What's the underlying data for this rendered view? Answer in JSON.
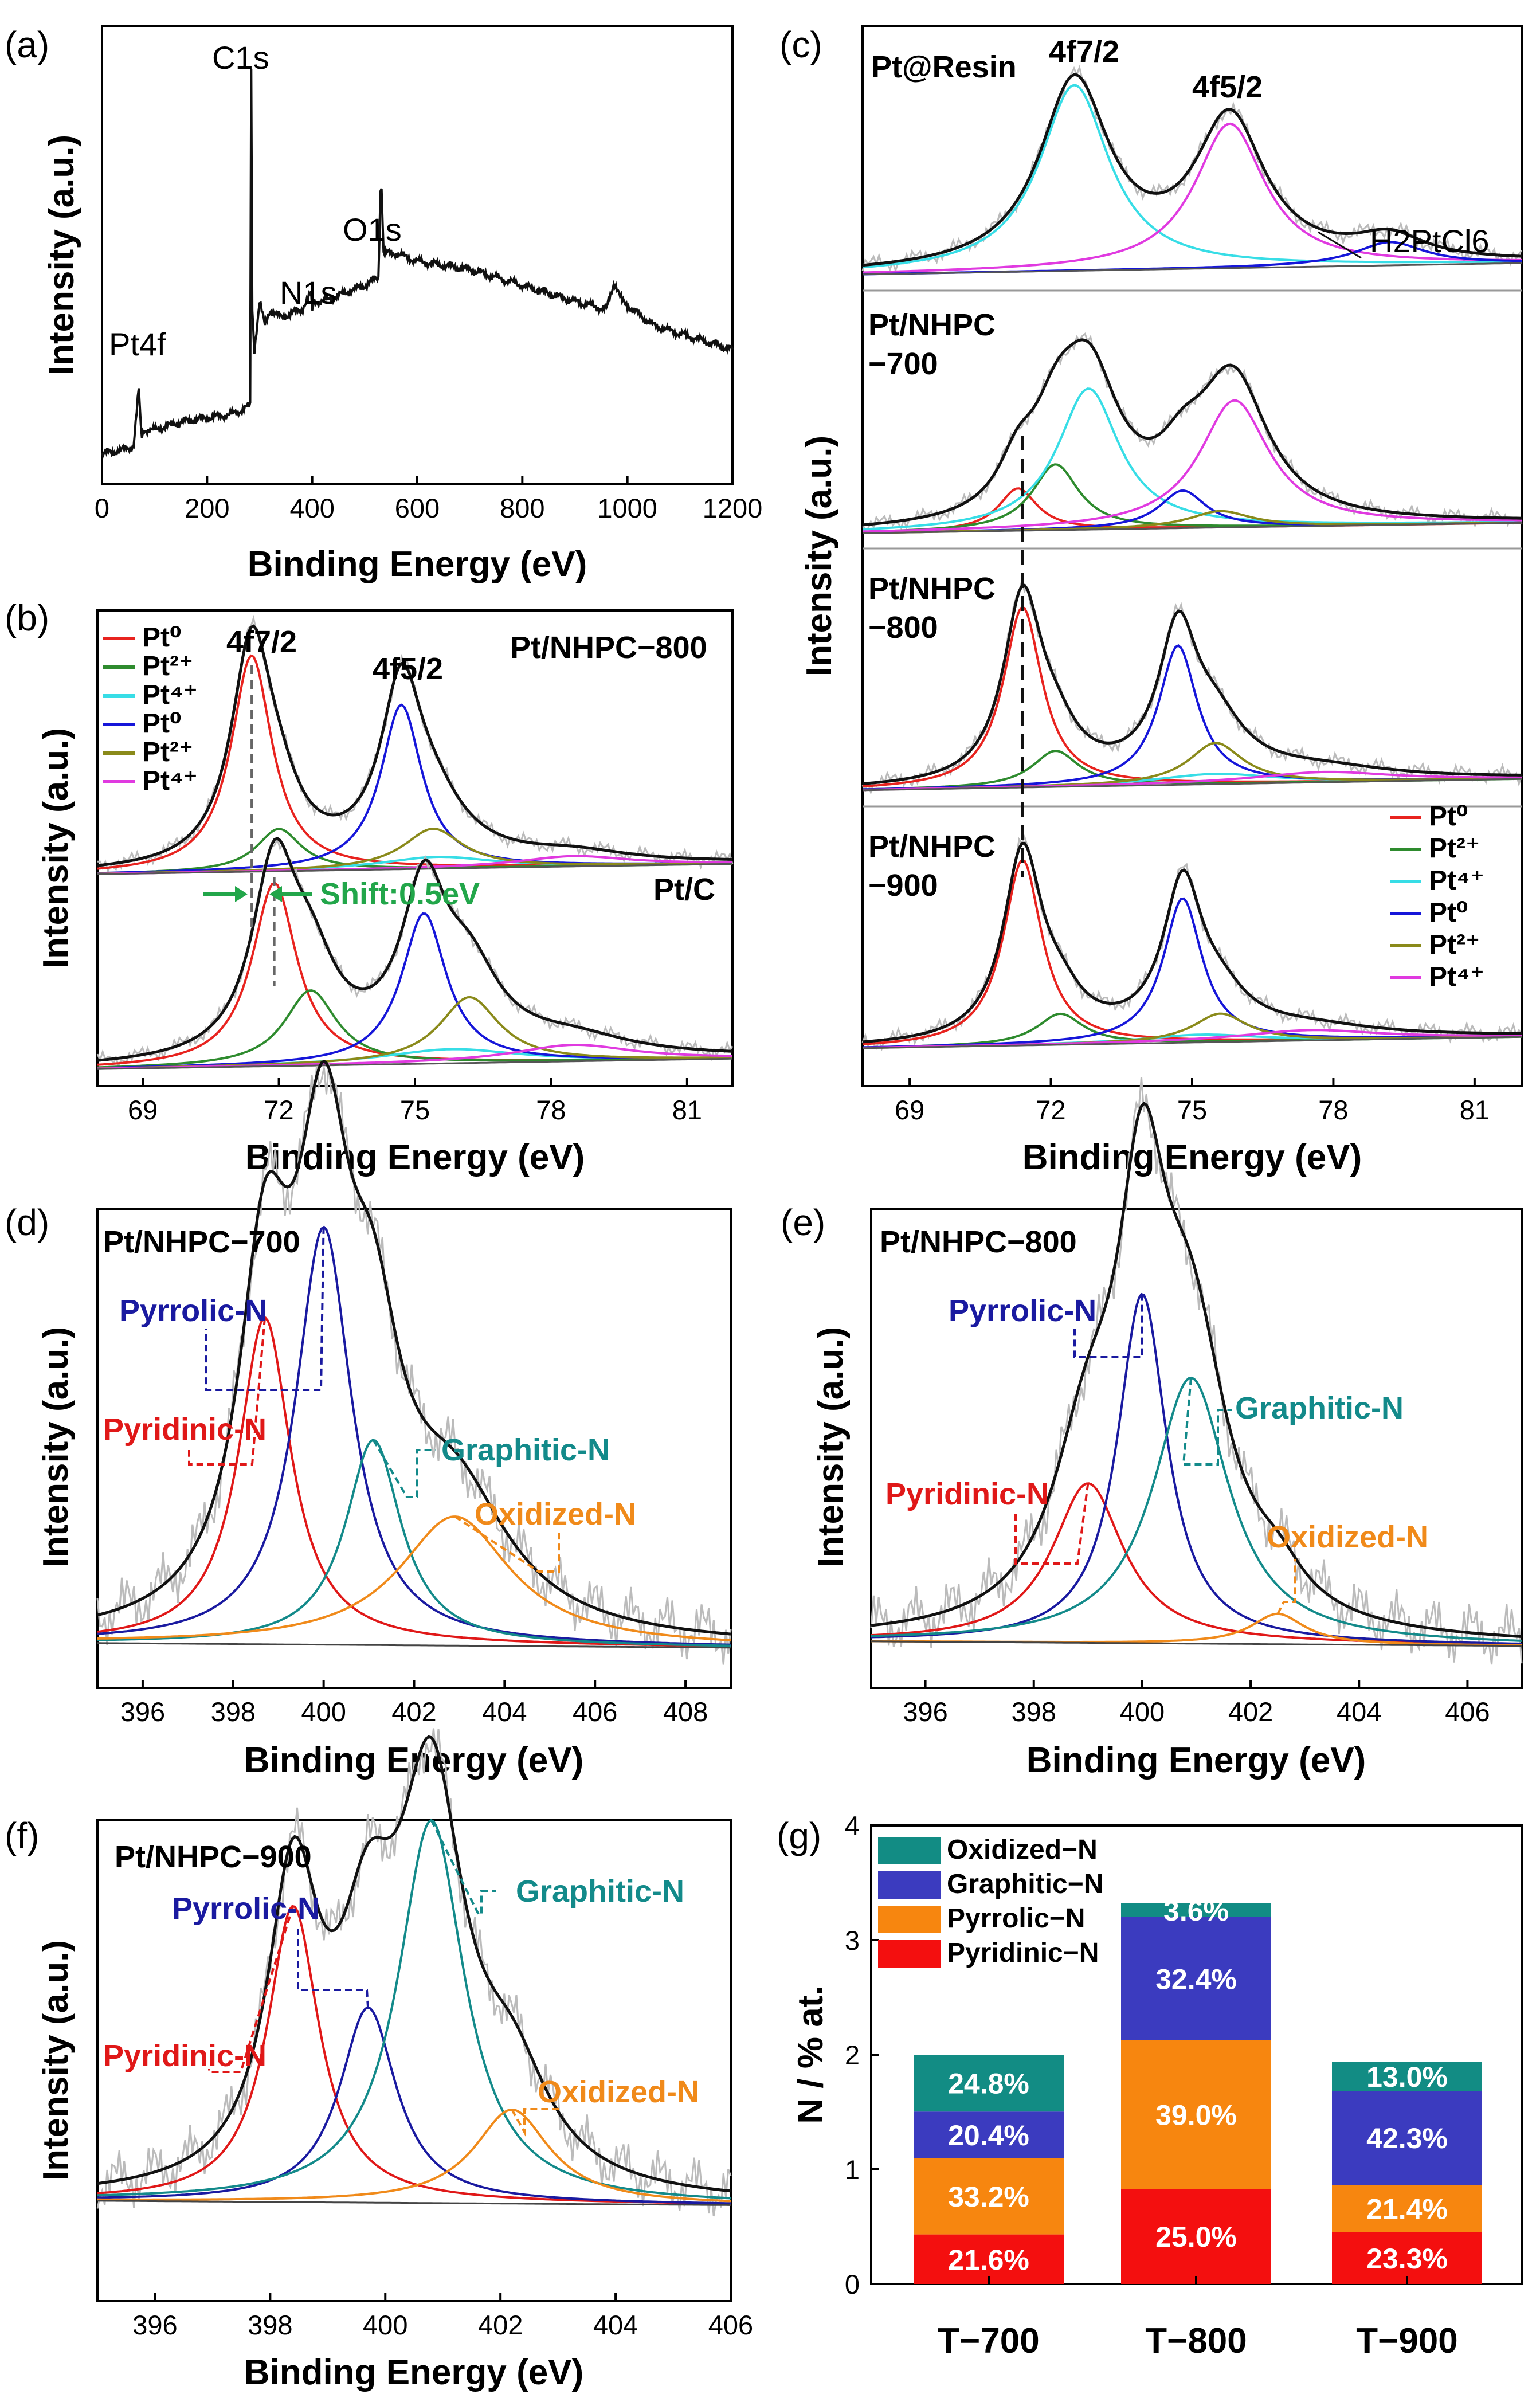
{
  "colors": {
    "pt0": "#e8231f",
    "pt2": "#2e8b2e",
    "pt4": "#37dde6",
    "pt0b": "#1616d9",
    "pt2b": "#8a8a1a",
    "pt4b": "#e03ae0",
    "envelope": "#111111",
    "raw": "#bbbbbb",
    "pyridinic": "#e01818",
    "pyrrolic": "#1a1aa0",
    "graphitic": "#138a8a",
    "oxidized": "#f08a1a",
    "bar_pyridinic": "#f40f0f",
    "bar_pyrrolic": "#f7860f",
    "bar_graphitic": "#3b3bbf",
    "bar_oxidized": "#128c84",
    "shift": "#22a64a"
  },
  "chart_data": [
    {
      "panel": "(a)",
      "type": "line",
      "xlabel": "Binding Energy (eV)",
      "ylabel": "Intensity (a.u.)",
      "xlim": [
        0,
        1200
      ],
      "xticks": [
        0,
        200,
        400,
        600,
        800,
        1000,
        1200
      ],
      "annotations": [
        "C1s",
        "O1s",
        "N1s",
        "Pt4f"
      ],
      "series": [
        {
          "name": "survey",
          "x": [
            0,
            40,
            60,
            70,
            75,
            80,
            100,
            150,
            200,
            250,
            282,
            284,
            286,
            290,
            300,
            310,
            320,
            340,
            380,
            398,
            400,
            402,
            420,
            460,
            500,
            526,
            531,
            536,
            560,
            600,
            700,
            800,
            900,
            960,
            975,
            990,
            1000,
            1050,
            1100,
            1150,
            1200
          ],
          "y": [
            4,
            5,
            6,
            20,
            8,
            10,
            10,
            12,
            13,
            14,
            16,
            100,
            40,
            30,
            42,
            36,
            40,
            38,
            40,
            44,
            39,
            42,
            42,
            44,
            46,
            48,
            75,
            54,
            54,
            52,
            50,
            46,
            42,
            40,
            47,
            42,
            41,
            36,
            34,
            32,
            30
          ]
        }
      ]
    },
    {
      "panel": "(b)",
      "type": "line",
      "xlabel": "Binding Energy (eV)",
      "ylabel": "Intensity (a.u.)",
      "xlim": [
        68,
        82
      ],
      "xticks": [
        69,
        72,
        75,
        78,
        81
      ],
      "legend": [
        "Pt⁰",
        "Pt²⁺",
        "Pt⁴⁺",
        "Pt⁰",
        "Pt²⁺",
        "Pt⁴⁺"
      ],
      "sample_labels": [
        "Pt/NHPC−800",
        "Pt/C"
      ],
      "peak_labels": [
        "4f7/2",
        "4f5/2"
      ],
      "shift_label": "Shift:0.5eV",
      "dashed_lines_x": [
        71.4,
        71.9
      ],
      "spectra": [
        {
          "name": "Pt/NHPC−800",
          "peaks": [
            {
              "state": "pt0",
              "center": 71.4,
              "height": 4.6,
              "width": 0.55
            },
            {
              "state": "pt2",
              "center": 72.0,
              "height": 0.9,
              "width": 0.6
            },
            {
              "state": "pt4",
              "center": 75.5,
              "height": 0.25,
              "width": 1.5
            },
            {
              "state": "pt0b",
              "center": 74.7,
              "height": 3.5,
              "width": 0.55
            },
            {
              "state": "pt2b",
              "center": 75.4,
              "height": 0.85,
              "width": 0.8
            },
            {
              "state": "pt4b",
              "center": 78.5,
              "height": 0.22,
              "width": 1.5
            }
          ]
        },
        {
          "name": "Pt/C",
          "peaks": [
            {
              "state": "pt0",
              "center": 71.9,
              "height": 3.9,
              "width": 0.6
            },
            {
              "state": "pt2",
              "center": 72.7,
              "height": 1.6,
              "width": 0.7
            },
            {
              "state": "pt4",
              "center": 75.8,
              "height": 0.3,
              "width": 1.8
            },
            {
              "state": "pt0b",
              "center": 75.2,
              "height": 3.2,
              "width": 0.6
            },
            {
              "state": "pt2b",
              "center": 76.2,
              "height": 1.4,
              "width": 0.8
            },
            {
              "state": "pt4b",
              "center": 78.5,
              "height": 0.35,
              "width": 1.6
            }
          ]
        }
      ]
    },
    {
      "panel": "(c)",
      "type": "line",
      "xlabel": "Binding Energy (eV)",
      "ylabel": "Intensity (a.u.)",
      "xlim": [
        68,
        82
      ],
      "xticks": [
        69,
        72,
        75,
        78,
        81
      ],
      "legend": [
        "Pt⁰",
        "Pt²⁺",
        "Pt⁴⁺",
        "Pt⁰",
        "Pt²⁺",
        "Pt⁴⁺"
      ],
      "sample_labels": [
        "Pt@Resin",
        "Pt/NHPC\n−700",
        "Pt/NHPC\n−800",
        "Pt/NHPC\n−900"
      ],
      "peak_labels": [
        "4f7/2",
        "4f5/2",
        "H2PtCl6"
      ],
      "dashed_line_x": 71.4,
      "spectra": [
        {
          "name": "Pt@Resin",
          "peaks": [
            {
              "state": "pt4",
              "center": 72.5,
              "height": 3.6,
              "width": 0.9
            },
            {
              "state": "pt4b",
              "center": 75.8,
              "height": 2.8,
              "width": 0.9
            },
            {
              "state": "pt0b",
              "center": 79.2,
              "height": 0.45,
              "width": 0.9
            }
          ]
        },
        {
          "name": "Pt/NHPC−700",
          "peaks": [
            {
              "state": "pt0",
              "center": 71.3,
              "height": 0.9,
              "width": 0.5
            },
            {
              "state": "pt2",
              "center": 72.1,
              "height": 1.4,
              "width": 0.6
            },
            {
              "state": "pt4",
              "center": 72.8,
              "height": 3.0,
              "width": 0.8
            },
            {
              "state": "pt0b",
              "center": 74.8,
              "height": 0.8,
              "width": 0.6
            },
            {
              "state": "pt2b",
              "center": 75.6,
              "height": 0.35,
              "width": 0.8
            },
            {
              "state": "pt4b",
              "center": 75.9,
              "height": 2.7,
              "width": 0.9
            }
          ]
        },
        {
          "name": "Pt/NHPC−800",
          "peaks": [
            {
              "state": "pt0",
              "center": 71.4,
              "height": 3.5,
              "width": 0.5
            },
            {
              "state": "pt2",
              "center": 72.1,
              "height": 0.7,
              "width": 0.6
            },
            {
              "state": "pt4",
              "center": 75.5,
              "height": 0.2,
              "width": 1.5
            },
            {
              "state": "pt0b",
              "center": 74.7,
              "height": 2.7,
              "width": 0.5
            },
            {
              "state": "pt2b",
              "center": 75.5,
              "height": 0.8,
              "width": 0.7
            },
            {
              "state": "pt4b",
              "center": 77.8,
              "height": 0.2,
              "width": 1.8
            }
          ]
        },
        {
          "name": "Pt/NHPC−900",
          "peaks": [
            {
              "state": "pt0",
              "center": 71.4,
              "height": 3.6,
              "width": 0.5
            },
            {
              "state": "pt2",
              "center": 72.2,
              "height": 0.6,
              "width": 0.6
            },
            {
              "state": "pt4",
              "center": 75.2,
              "height": 0.15,
              "width": 1.5
            },
            {
              "state": "pt0b",
              "center": 74.8,
              "height": 2.8,
              "width": 0.5
            },
            {
              "state": "pt2b",
              "center": 75.6,
              "height": 0.55,
              "width": 0.7
            },
            {
              "state": "pt4b",
              "center": 77.5,
              "height": 0.2,
              "width": 1.8
            }
          ]
        }
      ]
    },
    {
      "panel": "(d)",
      "type": "line",
      "title": "Pt/NHPC−700",
      "xlabel": "Binding Energy (eV)",
      "ylabel": "Intensity (a.u.)",
      "xlim": [
        395,
        409
      ],
      "xticks": [
        396,
        398,
        400,
        402,
        404,
        406,
        408
      ],
      "peaks": [
        {
          "name": "Pyridinic-N",
          "center": 398.7,
          "height": 2.15,
          "width": 0.7
        },
        {
          "name": "Pyrrolic-N",
          "center": 400.0,
          "height": 2.75,
          "width": 0.75
        },
        {
          "name": "Graphitic-N",
          "center": 401.1,
          "height": 1.35,
          "width": 0.75
        },
        {
          "name": "Oxidized-N",
          "center": 402.9,
          "height": 0.85,
          "width": 1.5
        }
      ]
    },
    {
      "panel": "(e)",
      "type": "line",
      "title": "Pt/NHPC−800",
      "xlabel": "Binding Energy (eV)",
      "ylabel": "Intensity (a.u.)",
      "xlim": [
        395,
        407
      ],
      "xticks": [
        396,
        398,
        400,
        402,
        404,
        406
      ],
      "peaks": [
        {
          "name": "Pyridinic-N",
          "center": 399.0,
          "height": 1.05,
          "width": 0.8
        },
        {
          "name": "Pyrrolic-N",
          "center": 400.0,
          "height": 2.3,
          "width": 0.55
        },
        {
          "name": "Graphitic-N",
          "center": 400.9,
          "height": 1.75,
          "width": 0.85
        },
        {
          "name": "Oxidized-N",
          "center": 402.5,
          "height": 0.2,
          "width": 0.6
        }
      ]
    },
    {
      "panel": "(f)",
      "type": "line",
      "title": "Pt/NHPC−900",
      "xlabel": "Binding Energy (eV)",
      "ylabel": "Intensity (a.u.)",
      "xlim": [
        395,
        406
      ],
      "xticks": [
        396,
        398,
        400,
        402,
        404,
        406
      ],
      "peaks": [
        {
          "name": "Pyridinic-N",
          "center": 398.4,
          "height": 2.05,
          "width": 0.55
        },
        {
          "name": "Pyrrolic-N",
          "center": 399.7,
          "height": 1.35,
          "width": 0.6
        },
        {
          "name": "Graphitic-N",
          "center": 400.8,
          "height": 2.65,
          "width": 0.7
        },
        {
          "name": "Oxidized-N",
          "center": 402.2,
          "height": 0.65,
          "width": 0.8
        }
      ]
    },
    {
      "panel": "(g)",
      "type": "bar",
      "xlabel": "",
      "ylabel": "N / % at.",
      "ylim": [
        0,
        4
      ],
      "yticks": [
        0,
        1,
        2,
        3,
        4
      ],
      "categories": [
        "T−700",
        "T−800",
        "T−900"
      ],
      "legend": [
        "Oxidized−N",
        "Graphitic−N",
        "Pyrrolic−N",
        "Pyridinic−N"
      ],
      "series": [
        {
          "name": "Pyridinic−N",
          "values": [
            0.432,
            0.83,
            0.451
          ],
          "labels": [
            "21.6%",
            "25.0%",
            "23.3%"
          ]
        },
        {
          "name": "Pyrrolic−N",
          "values": [
            0.664,
            1.295,
            0.414
          ],
          "labels": [
            "33.2%",
            "39.0%",
            "21.4%"
          ]
        },
        {
          "name": "Graphitic−N",
          "values": [
            0.408,
            1.076,
            0.819
          ],
          "labels": [
            "20.4%",
            "32.4%",
            "42.3%"
          ]
        },
        {
          "name": "Oxidized−N",
          "values": [
            0.496,
            0.12,
            0.252
          ],
          "labels": [
            "24.8%",
            "3.6%",
            "13.0%"
          ]
        }
      ],
      "totals": [
        2.0,
        3.32,
        1.94
      ]
    }
  ]
}
